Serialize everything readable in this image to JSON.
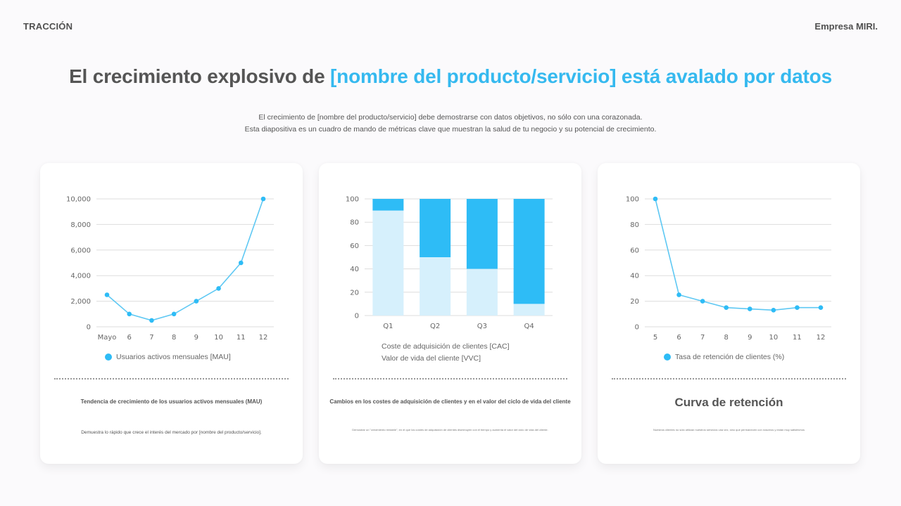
{
  "header": {
    "section": "TRACCIÓN",
    "company": "Empresa MIRI."
  },
  "headline": {
    "prefix": "El crecimiento explosivo de ",
    "accent": "[nombre del producto/servicio] está avalado por datos"
  },
  "subtitle": {
    "line1": "El crecimiento de [nombre del producto/servicio] debe demostrarse con datos objetivos, no sólo con una corazonada.",
    "line2": "Esta diapositiva es un cuadro de mando de métricas clave que muestran la salud de tu negocio y su potencial de crecimiento."
  },
  "colors": {
    "accent": "#35b9ef",
    "series_primary": "#2ebcf6",
    "series_light": "#d6f0fc",
    "line_color": "#5ec8f3",
    "text": "#555555",
    "background": "#fbfafc"
  },
  "cards": [
    {
      "title": "Tendencia de crecimiento de los usuarios activos mensuales (MAU)",
      "description": "Demuestra lo rápido que crece el interés del mercado por [nombre del producto/servicio]."
    },
    {
      "title": "Cambios en los costes de adquisición de clientes y en el valor del ciclo de vida del cliente",
      "description": "Demostrar un \"crecimiento rentable\", en el que los costes de adquisición de clientes disminuyen con el tiempo y aumenta el valor del ciclo de vida del cliente."
    },
    {
      "title": "Curva de retención",
      "description": "Nuestros clientes no sólo utilizan nuestros servicios una vez, sino que permanecen con nosotros y están muy satisfechos"
    }
  ],
  "chart_data": [
    {
      "type": "line",
      "title": "",
      "categories": [
        "Mayo",
        "6",
        "7",
        "8",
        "9",
        "10",
        "11",
        "12"
      ],
      "series": [
        {
          "name": "Usuarios activos mensuales [MAU]",
          "values": [
            2500,
            1000,
            500,
            1000,
            2000,
            3000,
            5000,
            10000
          ]
        }
      ],
      "yticks": [
        "0",
        "2,000",
        "4,000",
        "6,000",
        "8,000",
        "10,000"
      ],
      "ylim": [
        0,
        10000
      ],
      "xlabel": "",
      "ylabel": "",
      "grid": true,
      "legend_position": "bottom"
    },
    {
      "type": "bar",
      "stacked": true,
      "title": "",
      "categories": [
        "Q1",
        "Q2",
        "Q3",
        "Q4"
      ],
      "series": [
        {
          "name": "Coste de adquisición de clientes [CAC]",
          "values": [
            90,
            50,
            40,
            10
          ]
        },
        {
          "name": "Valor de vida del cliente [VVC]",
          "values": [
            10,
            50,
            60,
            90
          ]
        }
      ],
      "yticks": [
        "0",
        "20",
        "40",
        "60",
        "80",
        "100"
      ],
      "ylim": [
        0,
        100
      ],
      "xlabel": "",
      "ylabel": "",
      "grid": true,
      "legend_position": "bottom"
    },
    {
      "type": "line",
      "title": "",
      "categories": [
        "5",
        "6",
        "7",
        "8",
        "9",
        "10",
        "11",
        "12"
      ],
      "series": [
        {
          "name": "Tasa de retención de clientes (%)",
          "values": [
            100,
            25,
            20,
            15,
            14,
            13,
            15,
            15
          ]
        }
      ],
      "yticks": [
        "0",
        "20",
        "40",
        "60",
        "80",
        "100"
      ],
      "ylim": [
        0,
        100
      ],
      "xlabel": "",
      "ylabel": "",
      "grid": true,
      "legend_position": "bottom"
    }
  ]
}
